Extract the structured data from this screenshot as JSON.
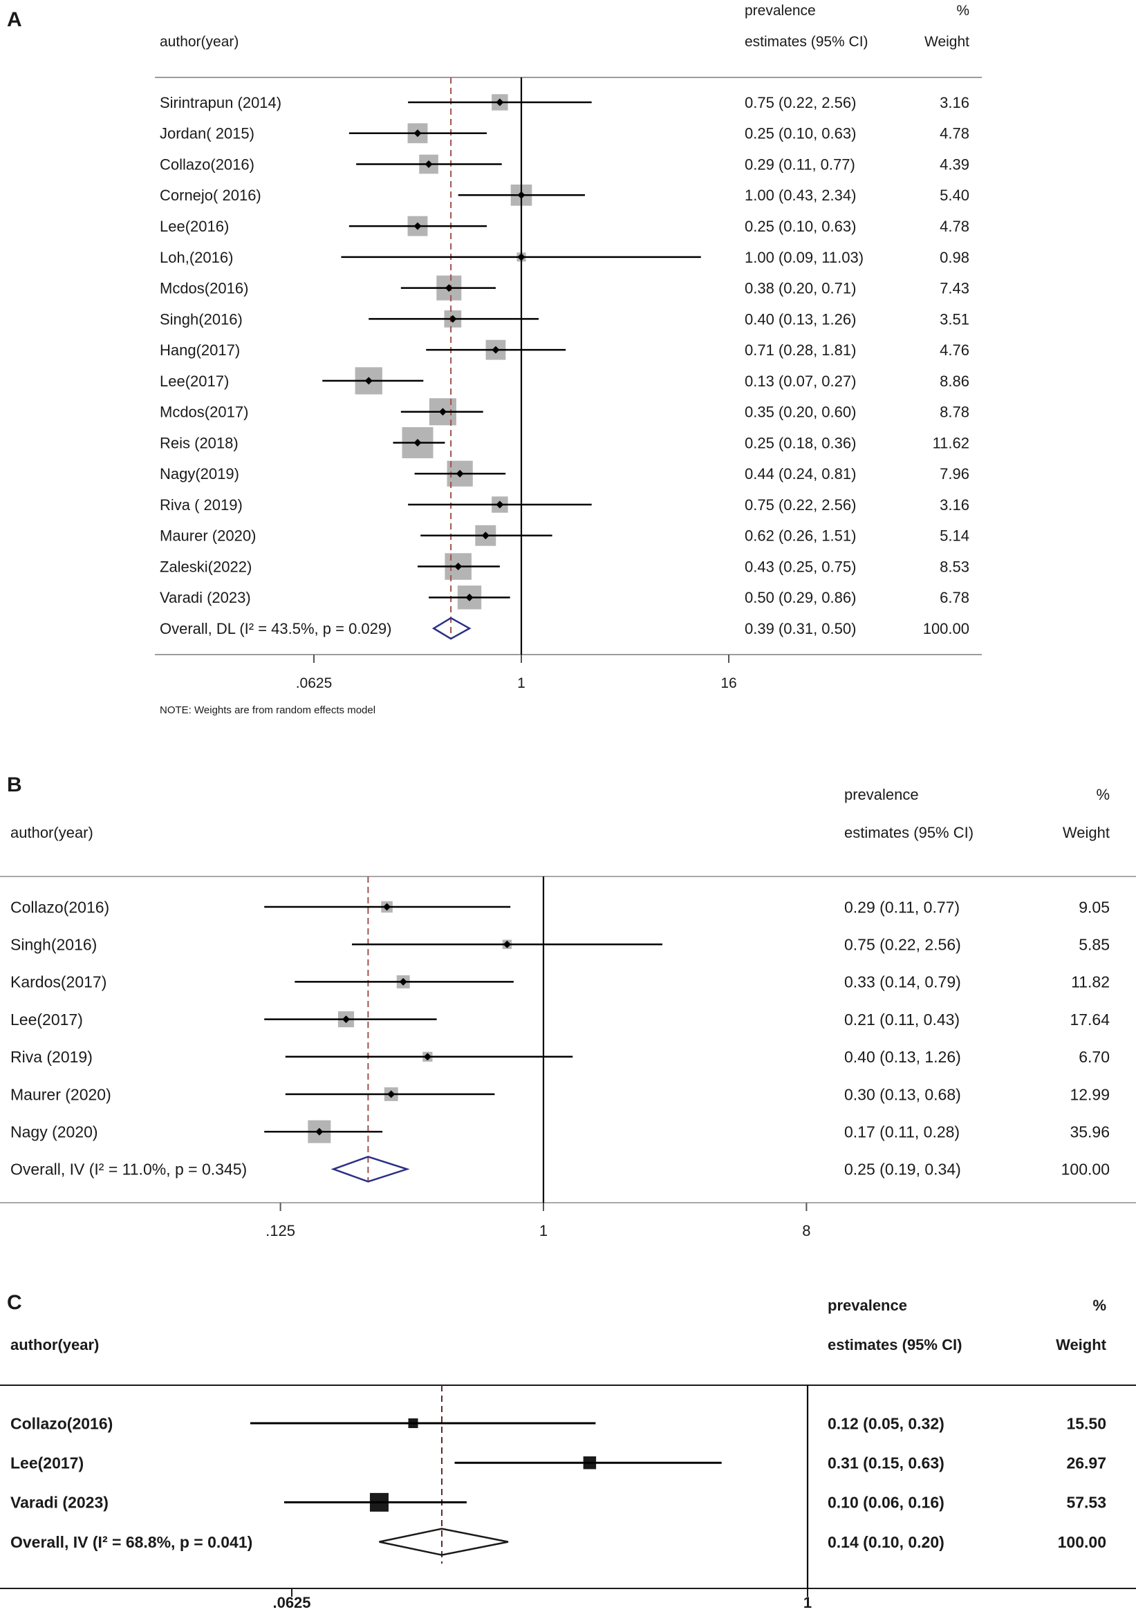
{
  "chart_data": [
    {
      "panel": "A",
      "type": "scatter",
      "x_scale": "log",
      "grid": false,
      "columns": {
        "study": "author(year)",
        "estimate_line1": "prevalence",
        "estimate_line2": "estimates (95% CI)",
        "weight_line1": "%",
        "weight_line2": "Weight"
      },
      "xticks": [
        ".0625",
        "1",
        "16"
      ],
      "reference_line": 1,
      "rows": [
        {
          "label": "Sirintrapun (2014)",
          "estimate": 0.75,
          "ci": [
            0.22,
            2.56
          ],
          "estimate_text": "0.75 (0.22, 2.56)",
          "weight": "3.16"
        },
        {
          "label": "Jordan( 2015)",
          "estimate": 0.25,
          "ci": [
            0.1,
            0.63
          ],
          "estimate_text": "0.25 (0.10, 0.63)",
          "weight": "4.78"
        },
        {
          "label": "Collazo(2016)",
          "estimate": 0.29,
          "ci": [
            0.11,
            0.77
          ],
          "estimate_text": "0.29 (0.11, 0.77)",
          "weight": "4.39"
        },
        {
          "label": "Cornejo( 2016)",
          "estimate": 1.0,
          "ci": [
            0.43,
            2.34
          ],
          "estimate_text": "1.00 (0.43, 2.34)",
          "weight": "5.40"
        },
        {
          "label": "Lee(2016)",
          "estimate": 0.25,
          "ci": [
            0.1,
            0.63
          ],
          "estimate_text": "0.25 (0.10, 0.63)",
          "weight": "4.78"
        },
        {
          "label": "Loh,(2016)",
          "estimate": 1.0,
          "ci": [
            0.09,
            11.03
          ],
          "estimate_text": "1.00 (0.09, 11.03)",
          "weight": "0.98"
        },
        {
          "label": "Mcdos(2016)",
          "estimate": 0.38,
          "ci": [
            0.2,
            0.71
          ],
          "estimate_text": "0.38 (0.20, 0.71)",
          "weight": "7.43"
        },
        {
          "label": "Singh(2016)",
          "estimate": 0.4,
          "ci": [
            0.13,
            1.26
          ],
          "estimate_text": "0.40 (0.13, 1.26)",
          "weight": "3.51"
        },
        {
          "label": "Hang(2017)",
          "estimate": 0.71,
          "ci": [
            0.28,
            1.81
          ],
          "estimate_text": "0.71 (0.28, 1.81)",
          "weight": "4.76"
        },
        {
          "label": "Lee(2017)",
          "estimate": 0.13,
          "ci": [
            0.07,
            0.27
          ],
          "estimate_text": "0.13 (0.07, 0.27)",
          "weight": "8.86"
        },
        {
          "label": "Mcdos(2017)",
          "estimate": 0.35,
          "ci": [
            0.2,
            0.6
          ],
          "estimate_text": "0.35 (0.20, 0.60)",
          "weight": "8.78"
        },
        {
          "label": "Reis (2018)",
          "estimate": 0.25,
          "ci": [
            0.18,
            0.36
          ],
          "estimate_text": "0.25 (0.18, 0.36)",
          "weight": "11.62"
        },
        {
          "label": "Nagy(2019)",
          "estimate": 0.44,
          "ci": [
            0.24,
            0.81
          ],
          "estimate_text": "0.44 (0.24, 0.81)",
          "weight": "7.96"
        },
        {
          "label": "Riva ( 2019)",
          "estimate": 0.75,
          "ci": [
            0.22,
            2.56
          ],
          "estimate_text": "0.75 (0.22, 2.56)",
          "weight": "3.16"
        },
        {
          "label": "Maurer (2020)",
          "estimate": 0.62,
          "ci": [
            0.26,
            1.51
          ],
          "estimate_text": "0.62 (0.26, 1.51)",
          "weight": "5.14"
        },
        {
          "label": "Zaleski(2022)",
          "estimate": 0.43,
          "ci": [
            0.25,
            0.75
          ],
          "estimate_text": "0.43 (0.25, 0.75)",
          "weight": "8.53"
        },
        {
          "label": "Varadi (2023)",
          "estimate": 0.5,
          "ci": [
            0.29,
            0.86
          ],
          "estimate_text": "0.50 (0.29, 0.86)",
          "weight": "6.78"
        }
      ],
      "overall": {
        "label": "Overall, DL (I² = 43.5%, p = 0.029)",
        "estimate": 0.39,
        "ci": [
          0.31,
          0.5
        ],
        "estimate_text": "0.39 (0.31, 0.50)",
        "weight": "100.00"
      },
      "note": "NOTE: Weights are from random effects model",
      "colors": {
        "box": "#b4b4b4",
        "marker": "#000000",
        "diamond": "#2b2f86",
        "pooled_line": "#a0524d"
      }
    },
    {
      "panel": "B",
      "type": "scatter",
      "x_scale": "log",
      "grid": false,
      "columns": {
        "study": "author(year)",
        "estimate_line1": "prevalence",
        "estimate_line2": "estimates (95% CI)",
        "weight_line1": "%",
        "weight_line2": "Weight"
      },
      "xticks": [
        ".125",
        "1",
        "8"
      ],
      "reference_line": 1,
      "rows": [
        {
          "label": "Collazo(2016)",
          "estimate": 0.29,
          "ci": [
            0.11,
            0.77
          ],
          "estimate_text": "0.29 (0.11, 0.77)",
          "weight": "9.05"
        },
        {
          "label": "Singh(2016)",
          "estimate": 0.75,
          "ci": [
            0.22,
            2.56
          ],
          "estimate_text": "0.75 (0.22, 2.56)",
          "weight": "5.85"
        },
        {
          "label": "Kardos(2017)",
          "estimate": 0.33,
          "ci": [
            0.14,
            0.79
          ],
          "estimate_text": "0.33 (0.14, 0.79)",
          "weight": "11.82"
        },
        {
          "label": "Lee(2017)",
          "estimate": 0.21,
          "ci": [
            0.11,
            0.43
          ],
          "estimate_text": "0.21 (0.11, 0.43)",
          "weight": "17.64"
        },
        {
          "label": "Riva (2019)",
          "estimate": 0.4,
          "ci": [
            0.13,
            1.26
          ],
          "estimate_text": "0.40 (0.13, 1.26)",
          "weight": "6.70"
        },
        {
          "label": "Maurer (2020)",
          "estimate": 0.3,
          "ci": [
            0.13,
            0.68
          ],
          "estimate_text": "0.30 (0.13, 0.68)",
          "weight": "12.99"
        },
        {
          "label": "Nagy (2020)",
          "estimate": 0.17,
          "ci": [
            0.11,
            0.28
          ],
          "estimate_text": "0.17 (0.11, 0.28)",
          "weight": "35.96"
        }
      ],
      "overall": {
        "label": "Overall, IV (I² = 11.0%, p = 0.345)",
        "estimate": 0.25,
        "ci": [
          0.19,
          0.34
        ],
        "estimate_text": "0.25 (0.19, 0.34)",
        "weight": "100.00"
      },
      "colors": {
        "box": "#b4b4b4",
        "marker": "#000000",
        "diamond": "#2b2f86",
        "pooled_line": "#a0524d"
      }
    },
    {
      "panel": "C",
      "type": "scatter",
      "x_scale": "log",
      "grid": false,
      "columns": {
        "study": "author(year)",
        "estimate_line1": "prevalence",
        "estimate_line2": "estimates (95% CI)",
        "weight_line1": "%",
        "weight_line2": "Weight"
      },
      "xticks": [
        ".0625",
        "1"
      ],
      "reference_line": 1,
      "rows": [
        {
          "label": "Collazo(2016)",
          "estimate": 0.12,
          "ci": [
            0.05,
            0.32
          ],
          "estimate_text": "0.12 (0.05, 0.32)",
          "weight": "15.50"
        },
        {
          "label": "Lee(2017)",
          "estimate": 0.31,
          "ci": [
            0.15,
            0.63
          ],
          "estimate_text": "0.31 (0.15, 0.63)",
          "weight": "26.97"
        },
        {
          "label": "Varadi (2023)",
          "estimate": 0.1,
          "ci": [
            0.06,
            0.16
          ],
          "estimate_text": "0.10 (0.06, 0.16)",
          "weight": "57.53"
        }
      ],
      "overall": {
        "label": "Overall, IV (I² = 68.8%, p = 0.041)",
        "estimate": 0.14,
        "ci": [
          0.1,
          0.2
        ],
        "estimate_text": "0.14 (0.10, 0.20)",
        "weight": "100.00"
      },
      "colors": {
        "box": "#1a1a1a",
        "marker": "#1a1a1a",
        "diamond": "#1a1a1a",
        "pooled_line": "#5b2b2b"
      }
    }
  ]
}
